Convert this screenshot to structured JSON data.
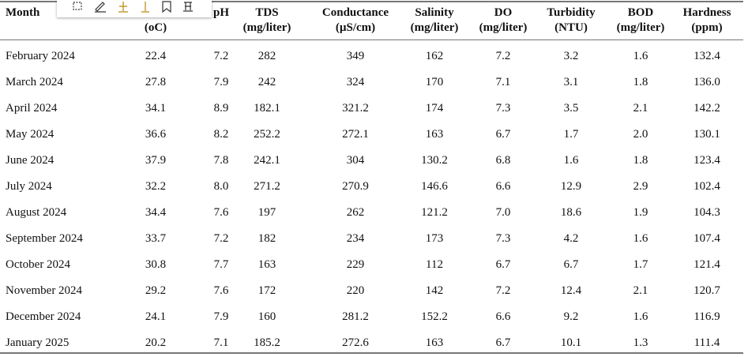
{
  "table": {
    "header": [
      {
        "top": "Month"
      },
      {
        "bottom": "(oC)"
      },
      {
        "top": "pH"
      },
      {
        "top": "TDS",
        "bottom": "(mg/liter)"
      },
      {
        "top": "Conductance",
        "bottom": "(µS/cm)"
      },
      {
        "top": "Salinity",
        "bottom": "(mg/liter)"
      },
      {
        "top": "DO",
        "bottom": "(mg/liter)"
      },
      {
        "top": "Turbidity",
        "bottom": "(NTU)"
      },
      {
        "top": "BOD",
        "bottom": "(mg/liter)"
      },
      {
        "top": "Hardness",
        "bottom": "(ppm)"
      }
    ],
    "rows": [
      [
        "February 2024",
        "22.4",
        "7.2",
        "282",
        "349",
        "162",
        "7.2",
        "3.2",
        "1.6",
        "132.4"
      ],
      [
        "March 2024",
        "27.8",
        "7.9",
        "242",
        "324",
        "170",
        "7.1",
        "3.1",
        "1.8",
        "136.0"
      ],
      [
        "April 2024",
        "34.1",
        "8.9",
        "182.1",
        "321.2",
        "174",
        "7.3",
        "3.5",
        "2.1",
        "142.2"
      ],
      [
        "May 2024",
        "36.6",
        "8.2",
        "252.2",
        "272.1",
        "163",
        "6.7",
        "1.7",
        "2.0",
        "130.1"
      ],
      [
        "June 2024",
        "37.9",
        "7.8",
        "242.1",
        "304",
        "130.2",
        "6.8",
        "1.6",
        "1.8",
        "123.4"
      ],
      [
        "July 2024",
        "32.2",
        "8.0",
        "271.2",
        "270.9",
        "146.6",
        "6.6",
        "12.9",
        "2.9",
        "102.4"
      ],
      [
        "August 2024",
        "34.4",
        "7.6",
        "197",
        "262",
        "121.2",
        "7.0",
        "18.6",
        "1.9",
        "104.3"
      ],
      [
        "September 2024",
        "33.7",
        "7.2",
        "182",
        "234",
        "173",
        "7.3",
        "4.2",
        "1.6",
        "107.4"
      ],
      [
        "October 2024",
        "30.8",
        "7.7",
        "163",
        "229",
        "112",
        "6.7",
        "6.7",
        "1.7",
        "121.4"
      ],
      [
        "November 2024",
        "29.2",
        "7.6",
        "172",
        "220",
        "142",
        "7.2",
        "12.4",
        "2.1",
        "120.7"
      ],
      [
        "December 2024",
        "24.1",
        "7.9",
        "160",
        "281.2",
        "152.2",
        "6.6",
        "9.2",
        "1.6",
        "116.9"
      ],
      [
        "January 2025",
        "20.2",
        "7.1",
        "185.2",
        "272.6",
        "163",
        "6.7",
        "10.1",
        "1.3",
        "111.4"
      ]
    ]
  }
}
